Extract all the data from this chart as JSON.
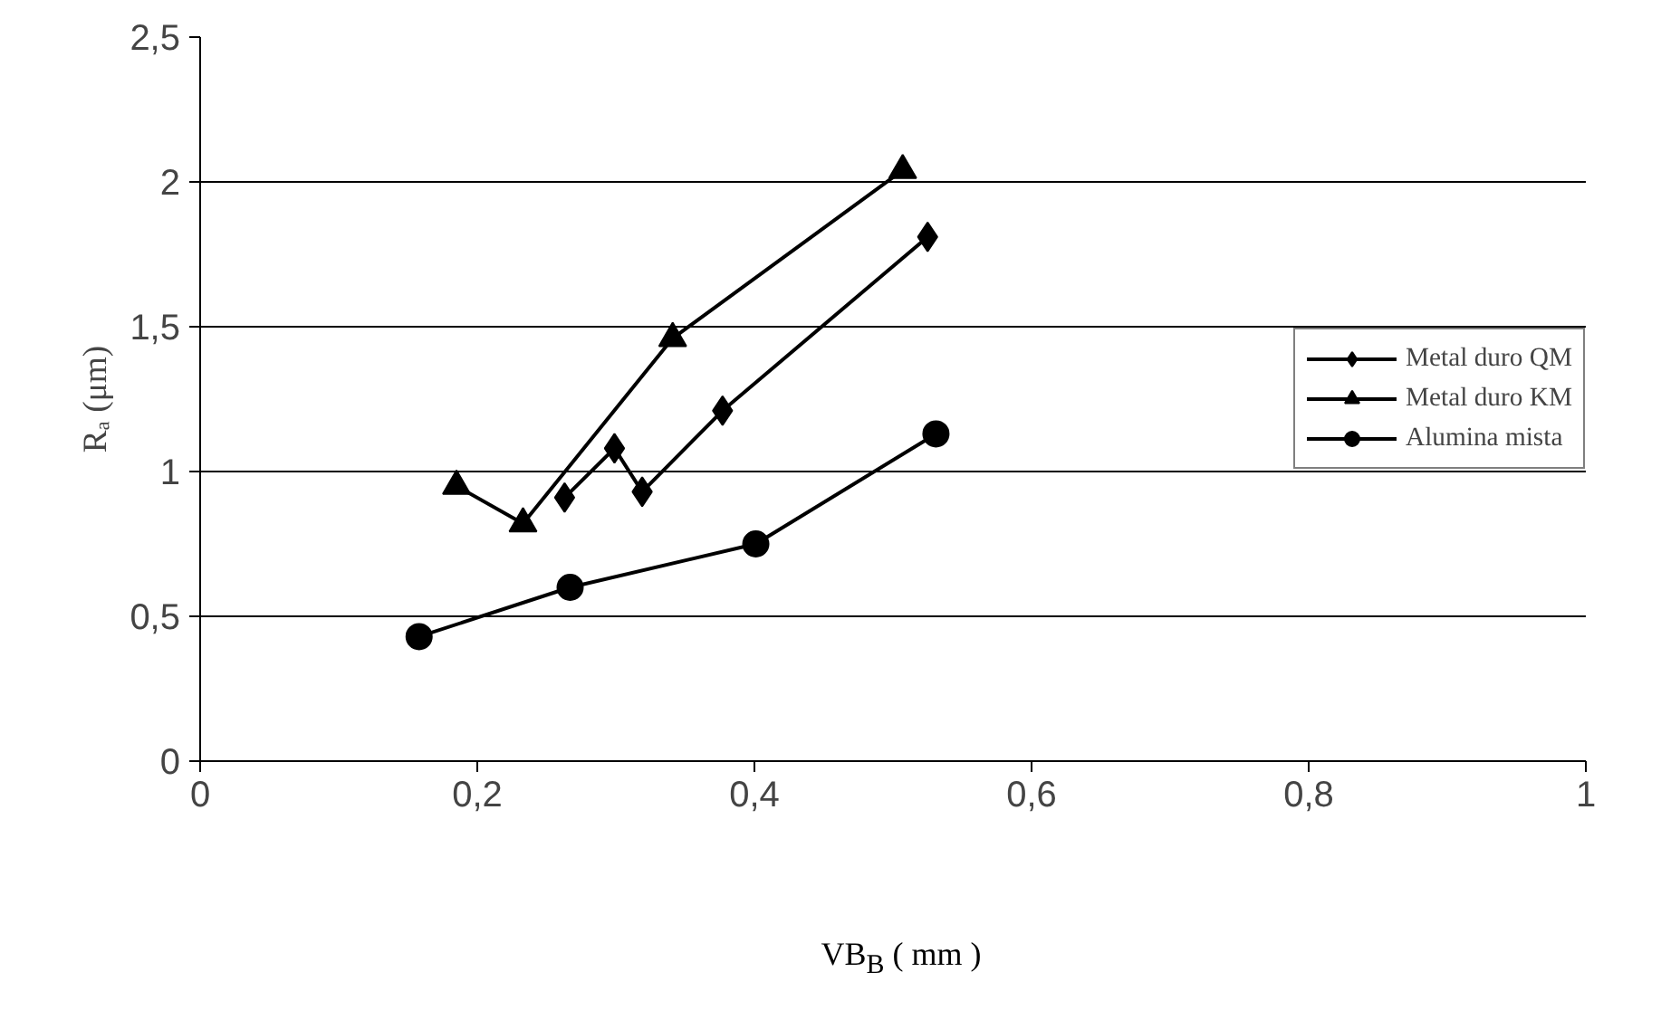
{
  "chart_data": {
    "type": "line",
    "xlabel": "VB$_{B}$ ( mm )",
    "ylabel": "Rₐ (μm)",
    "xlim": [
      0,
      1
    ],
    "xticks": [
      0,
      {
        "value": 0.2,
        "label": "0,2"
      },
      {
        "value": 0.4,
        "label": "0,4"
      },
      {
        "value": 0.6,
        "label": "0,6"
      },
      {
        "value": 0.8,
        "label": "0,8"
      },
      1
    ],
    "ylim": [
      0,
      2.5
    ],
    "yticks": [
      0,
      {
        "value": 0.5,
        "label": "0,5"
      },
      1,
      {
        "value": 1.5,
        "label": "1,5"
      },
      2,
      {
        "value": 2.5,
        "label": "2,5"
      }
    ],
    "grid": "y",
    "legend": "right",
    "line_style": "solid",
    "series": [
      {
        "name": "Metal duro QM",
        "color": "#000000",
        "marker": "diamond",
        "x": [
          0.263,
          0.299,
          0.319,
          0.377,
          0.525
        ],
        "values": [
          0.91,
          1.08,
          0.93,
          1.21,
          1.81
        ]
      },
      {
        "name": "Metal duro KM",
        "color": "#000000",
        "marker": "triangle",
        "x": [
          0.185,
          0.233,
          0.341,
          0.507
        ],
        "values": [
          0.95,
          0.82,
          1.46,
          2.04
        ]
      },
      {
        "name": "Alumina mista",
        "color": "#000000",
        "marker": "circle",
        "x": [
          0.158,
          0.267,
          0.401,
          0.531
        ],
        "values": [
          0.43,
          0.6,
          0.75,
          1.13
        ]
      }
    ]
  }
}
